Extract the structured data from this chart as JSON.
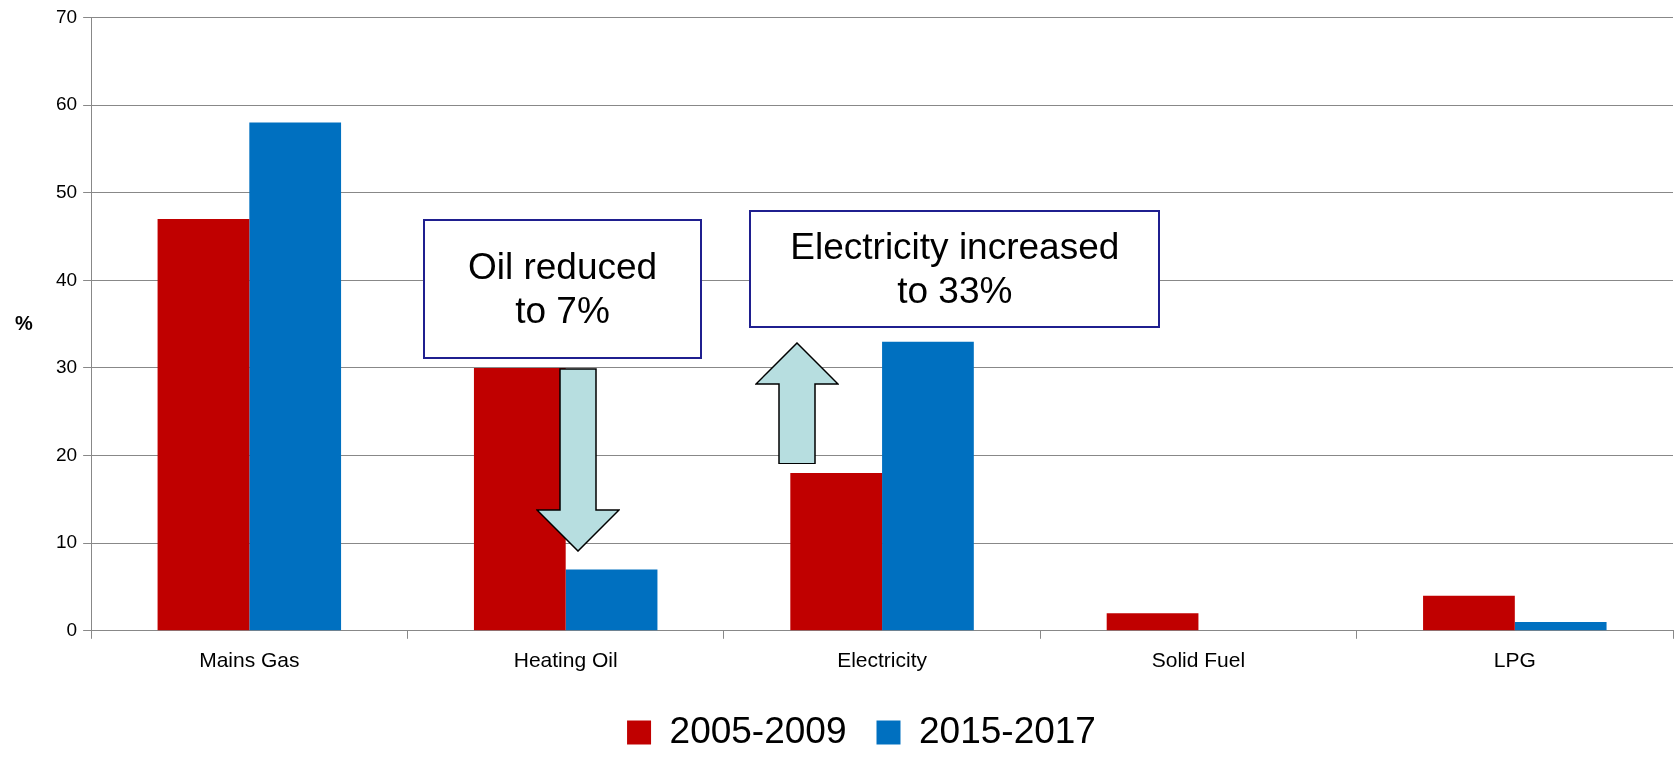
{
  "chart_data": {
    "type": "bar",
    "ylabel": "%",
    "categories": [
      "Mains Gas",
      "Heating Oil",
      "Electricity",
      "Solid Fuel",
      "LPG"
    ],
    "series": [
      {
        "name": "2005-2009",
        "color": "#c00000",
        "values": [
          47,
          30,
          18,
          2,
          4
        ]
      },
      {
        "name": "2015-2017",
        "color": "#0070c0",
        "values": [
          58,
          7,
          33,
          0,
          1
        ]
      }
    ],
    "ylim": [
      0,
      70
    ],
    "yticks": [
      0,
      10,
      20,
      30,
      40,
      50,
      60,
      70
    ],
    "grid": "y",
    "legend": "bottom",
    "annotations": [
      "Oil reduced to 7%",
      "Electricity increased to 33%"
    ]
  }
}
